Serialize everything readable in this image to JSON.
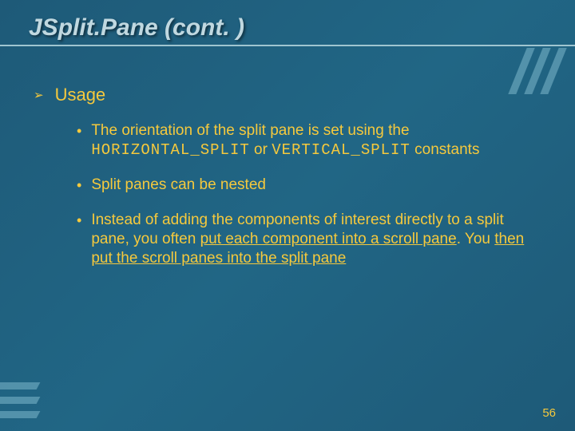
{
  "slide": {
    "title": "JSplit.Pane (cont. )",
    "page_number": "56",
    "background_color": "#1e5a78",
    "accent_color": "#f5c93d",
    "decoration_color": "#7eb8cc",
    "underline_color": "#9fc5d0",
    "title_color": "#c0d8e0",
    "title_fontsize": 30,
    "body_fontsize": 19,
    "level1": {
      "bullet_glyph": "➢",
      "text": "Usage"
    },
    "level2": {
      "bullet_glyph": "•",
      "items": [
        {
          "pre": "The orientation of the split pane is set using the ",
          "code1": "HORIZONTAL_SPLIT",
          "mid": " or ",
          "code2": "VERTICAL_SPLIT",
          "post": " constants"
        },
        {
          "text": "Split panes can be nested"
        },
        {
          "pre": "Instead of adding the components of interest directly to a split pane, you often ",
          "u1": "put each component into a scroll pane",
          "mid": ". You ",
          "u2": "then put the scroll panes into the split pane"
        }
      ]
    }
  }
}
